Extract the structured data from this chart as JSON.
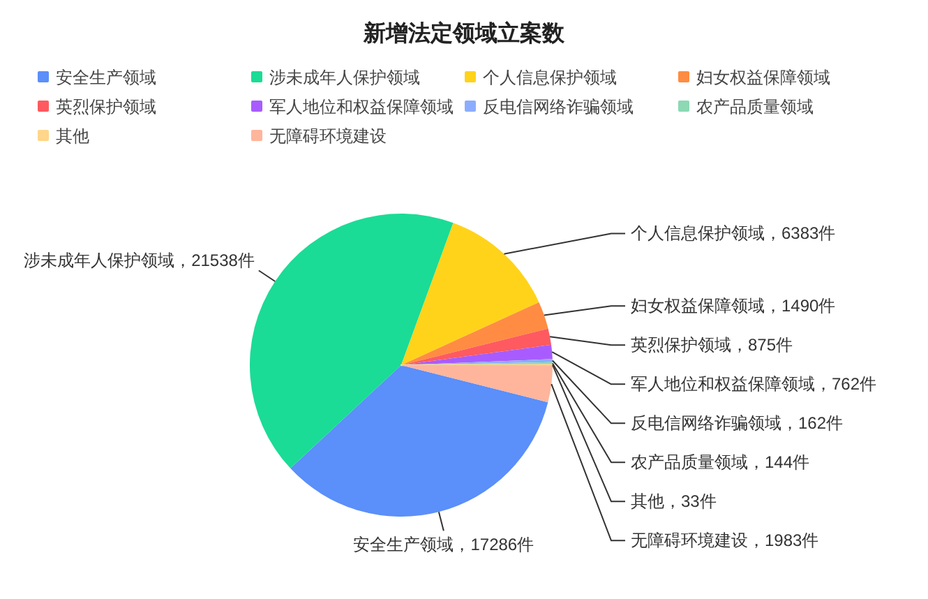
{
  "chart_data": {
    "type": "pie",
    "title": "新增法定领域立案数",
    "categories": [
      "安全生产领域",
      "涉未成年人保护领域",
      "个人信息保护领域",
      "妇女权益保障领域",
      "英烈保护领域",
      "军人地位和权益保障领域",
      "反电信网络诈骗领域",
      "农产品质量领域",
      "其他",
      "无障碍环境建设"
    ],
    "values": [
      17286,
      21538,
      6383,
      1490,
      875,
      762,
      162,
      144,
      33,
      1983
    ],
    "colors": [
      "#5b8ff9",
      "#1adc96",
      "#ffd31a",
      "#ff8c42",
      "#ff5a5f",
      "#a85cff",
      "#8cadff",
      "#8cd9b4",
      "#ffd68a",
      "#ffb59c"
    ],
    "value_labels": [
      "安全生产领域，17286件",
      "涉未成年人保护领域，21538件",
      "个人信息保护领域，6383件",
      "妇女权益保障领域，1490件",
      "英烈保护领域，875件",
      "军人地位和权益保障领域，762件",
      "反电信网络诈骗领域，162件",
      "农产品质量领域，144件",
      "其他，33件",
      "无障碍环境建设，1983件"
    ],
    "legend": "top"
  }
}
